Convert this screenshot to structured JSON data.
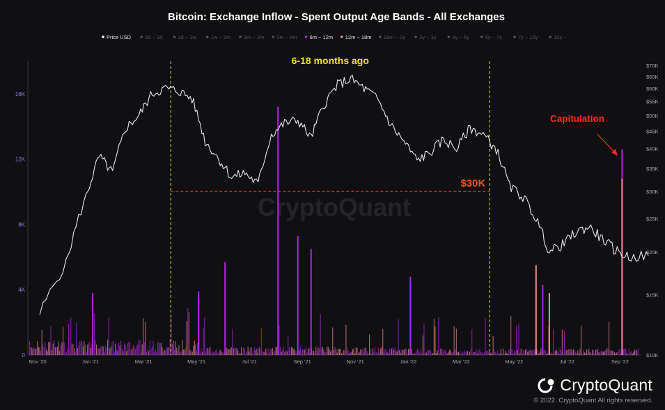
{
  "chart_data": {
    "type": "line",
    "title": "Bitcoin: Exchange Inflow - Spent Output Age Bands - All Exchanges",
    "watermark": "CryptoQuant",
    "legend": [
      {
        "name": "Price USD",
        "active": true,
        "color": "#ffffff"
      },
      {
        "name": "0d ~ 1d",
        "active": false,
        "color": "#5a5a60"
      },
      {
        "name": "1d ~ 1w",
        "active": false,
        "color": "#5a5a60"
      },
      {
        "name": "1w ~ 1m",
        "active": false,
        "color": "#5a5a60"
      },
      {
        "name": "1m ~ 3m",
        "active": false,
        "color": "#5a5a60"
      },
      {
        "name": "3m ~ 6m",
        "active": false,
        "color": "#5a5a60"
      },
      {
        "name": "6m ~ 12m",
        "active": true,
        "color": "#b026e0"
      },
      {
        "name": "12m ~ 18m",
        "active": true,
        "color": "#f08a9a"
      },
      {
        "name": "18m ~ 2y",
        "active": false,
        "color": "#5a5a60"
      },
      {
        "name": "2y ~ 3y",
        "active": false,
        "color": "#5a5a60"
      },
      {
        "name": "3y ~ 5y",
        "active": false,
        "color": "#5a5a60"
      },
      {
        "name": "5y ~ 7y",
        "active": false,
        "color": "#5a5a60"
      },
      {
        "name": "7y ~ 10y",
        "active": false,
        "color": "#5a5a60"
      },
      {
        "name": "10y ~",
        "active": false,
        "color": "#5a5a60"
      }
    ],
    "x_ticks": [
      "Nov '20",
      "Jan '21",
      "Mar '21",
      "May '21",
      "Jul '21",
      "Sep '21",
      "Nov '21",
      "Jan '22",
      "Mar '22",
      "May '22",
      "Jul '22",
      "Sep '22"
    ],
    "x_range": [
      "Nov '20",
      "Oct '22"
    ],
    "y_left": {
      "ticks": [
        "0",
        "4K",
        "8K",
        "12K",
        "16K"
      ],
      "min": 0,
      "max": 18000,
      "scale": "linear"
    },
    "y_right": {
      "ticks": [
        "$10K",
        "$15K",
        "$20K",
        "$25K",
        "$30K",
        "$35K",
        "$40K",
        "$45K",
        "$50K",
        "$55K",
        "$60K",
        "$65K",
        "$70K"
      ],
      "min": 10000,
      "max": 72000,
      "scale": "log"
    },
    "series": [
      {
        "name": "Price USD",
        "axis": "right",
        "color": "#ffffff",
        "x": [
          "Nov '20",
          "Dec '20",
          "Jan '21",
          "Jan '21",
          "Feb '21",
          "Feb '21",
          "Mar '21",
          "Mar '21",
          "Apr '21",
          "Apr '21",
          "May '21",
          "May '21",
          "Jun '21",
          "Jun '21",
          "Jul '21",
          "Jul '21",
          "Aug '21",
          "Aug '21",
          "Sep '21",
          "Sep '21",
          "Oct '21",
          "Oct '21",
          "Nov '21",
          "Nov '21",
          "Dec '21",
          "Dec '21",
          "Jan '22",
          "Jan '22",
          "Feb '22",
          "Feb '22",
          "Mar '22",
          "Mar '22",
          "Apr '22",
          "Apr '22",
          "May '22",
          "May '22",
          "Jun '22",
          "Jun '22",
          "Jul '22",
          "Jul '22",
          "Aug '22",
          "Aug '22",
          "Sep '22",
          "Sep '22",
          "Oct '22"
        ],
        "values": [
          13200,
          18500,
          29000,
          38000,
          34000,
          46000,
          50000,
          58000,
          60000,
          59000,
          56000,
          42000,
          37500,
          33000,
          34000,
          31500,
          44000,
          47500,
          48500,
          43000,
          54000,
          61500,
          64000,
          60000,
          56000,
          47000,
          42000,
          37000,
          39000,
          42500,
          40000,
          46000,
          44000,
          39800,
          31000,
          29000,
          25000,
          20000,
          21000,
          22800,
          23700,
          21800,
          20200,
          19300,
          19500
        ]
      },
      {
        "name": "6m ~ 12m",
        "axis": "left",
        "color": "#b026e0",
        "spikes": [
          {
            "x": "Jan '21",
            "value": 3800
          },
          {
            "x": "May '21",
            "value": 3900
          },
          {
            "x": "Jun '21",
            "value": 5700
          },
          {
            "x": "Aug '21",
            "value": 15200
          },
          {
            "x": "Sep '21",
            "value": 7300
          },
          {
            "x": "Sep '21",
            "value": 6500
          },
          {
            "x": "Jan '22",
            "value": 4800
          },
          {
            "x": "Jun '22",
            "value": 4300
          },
          {
            "x": "Sep '22",
            "value": 12600
          }
        ]
      },
      {
        "name": "12m ~ 18m",
        "axis": "left",
        "color": "#f08a9a",
        "spikes": [
          {
            "x": "Jun '22",
            "value": 5500
          },
          {
            "x": "Jun '22",
            "value": 3800
          },
          {
            "x": "Sep '22",
            "value": 10800
          }
        ]
      }
    ],
    "annotations": [
      {
        "text": "6-18 months ago",
        "color": "#f2e21b"
      },
      {
        "text": "$30K",
        "color": "#ff4a1c"
      },
      {
        "text": "Capitulation",
        "color": "#ff2a1c"
      }
    ]
  },
  "footer": {
    "brand": "CryptoQuant",
    "copyright": "© 2022. CryptoQuant All rights reserved."
  }
}
